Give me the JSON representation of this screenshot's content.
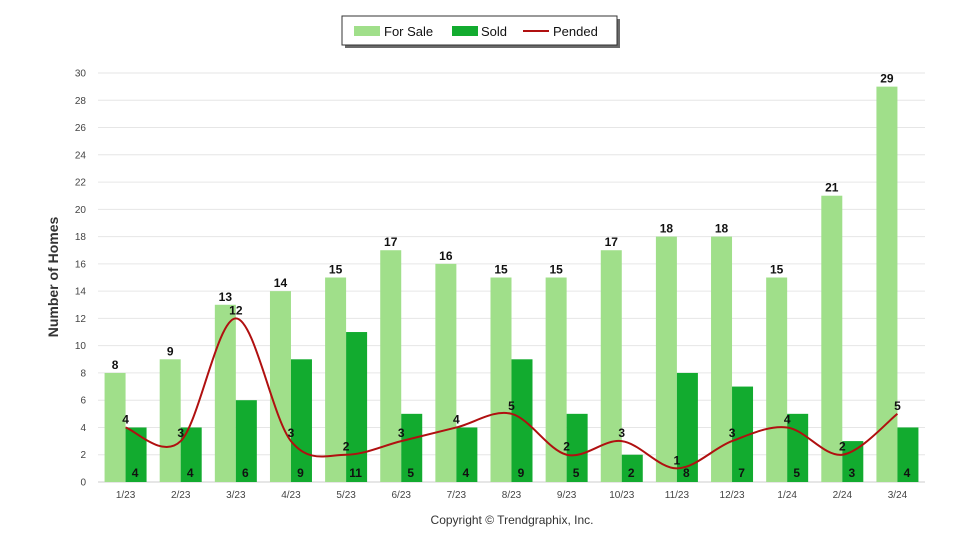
{
  "chart_data": {
    "type": "bar",
    "categories": [
      "1/23",
      "2/23",
      "3/23",
      "4/23",
      "5/23",
      "6/23",
      "7/23",
      "8/23",
      "9/23",
      "10/23",
      "11/23",
      "12/23",
      "1/24",
      "2/24",
      "3/24"
    ],
    "series": [
      {
        "name": "For Sale",
        "kind": "bar",
        "color": "#a0df8a",
        "values": [
          8,
          9,
          13,
          14,
          15,
          17,
          16,
          15,
          15,
          17,
          18,
          18,
          15,
          21,
          29
        ]
      },
      {
        "name": "Sold",
        "kind": "bar",
        "color": "#12ab2f",
        "values": [
          4,
          4,
          6,
          9,
          11,
          5,
          4,
          9,
          5,
          2,
          8,
          7,
          5,
          3,
          4
        ]
      },
      {
        "name": "Pended",
        "kind": "line",
        "color": "#b01010",
        "values": [
          4,
          3,
          12,
          3,
          2,
          3,
          4,
          5,
          2,
          3,
          1,
          3,
          4,
          2,
          5
        ]
      }
    ],
    "ylabel": "Number of Homes",
    "xlabel": "",
    "ylim": [
      0,
      30
    ],
    "yticks": [
      0,
      2,
      4,
      6,
      8,
      10,
      12,
      14,
      16,
      18,
      20,
      22,
      24,
      26,
      28,
      30
    ],
    "grid": true,
    "legend_position": "top-center"
  },
  "credit": "Copyright © Trendgraphix, Inc."
}
